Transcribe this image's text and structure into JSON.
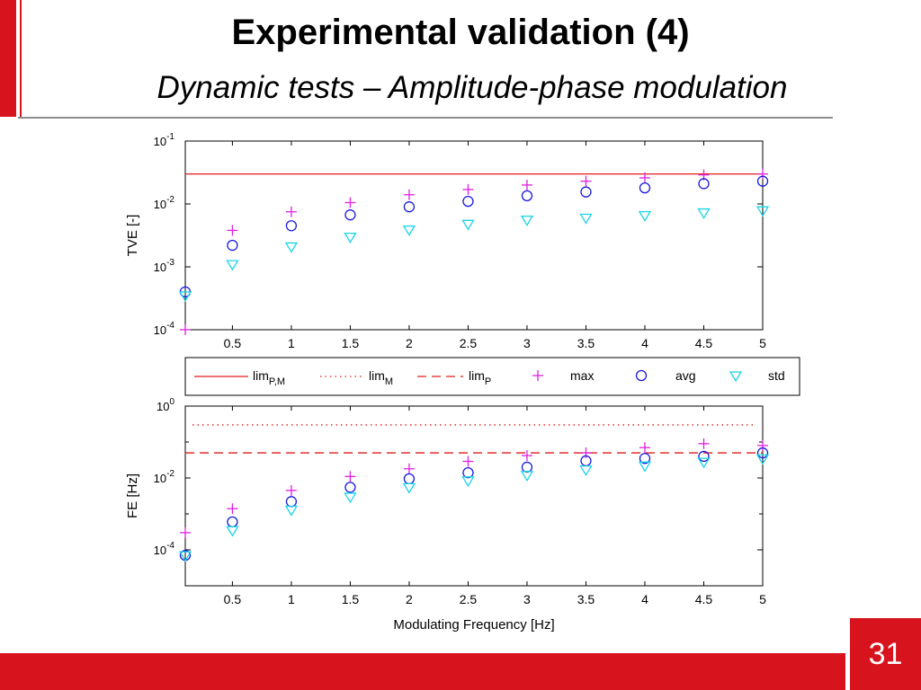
{
  "slide": {
    "title": "Experimental validation (4)",
    "subtitle": "Dynamic tests – Amplitude-phase modulation",
    "page_number": "31",
    "accent_color": "#d7141e"
  },
  "chart_data": [
    {
      "type": "scatter",
      "ylabel": "TVE [-]",
      "xlabel": "",
      "yscale": "log",
      "ylim": [
        0.0001,
        0.1
      ],
      "xlim": [
        0.1,
        5
      ],
      "x_ticks": [
        "0.5",
        "1",
        "1.5",
        "2",
        "2.5",
        "3",
        "3.5",
        "4",
        "4.5",
        "5"
      ],
      "y_ticks": [
        {
          "base": "10",
          "exp": "-1",
          "value": 0.1
        },
        {
          "base": "10",
          "exp": "-2",
          "value": 0.01
        },
        {
          "base": "10",
          "exp": "-3",
          "value": 0.001
        },
        {
          "base": "10",
          "exp": "-4",
          "value": 0.0001
        }
      ],
      "grid": false,
      "x": [
        0.1,
        0.5,
        1,
        1.5,
        2,
        2.5,
        3,
        3.5,
        4,
        4.5,
        5
      ],
      "lines": [
        {
          "name": "lim_P,M",
          "value": 0.03,
          "style": "solid",
          "color": "#e01c1c"
        }
      ],
      "series": [
        {
          "name": "max",
          "marker": "+",
          "color": "#e020e0",
          "values": [
            0.0001,
            0.0038,
            0.0075,
            0.0105,
            0.014,
            0.017,
            0.02,
            0.023,
            0.026,
            0.029,
            0.03
          ]
        },
        {
          "name": "avg",
          "marker": "o",
          "color": "#1a1ae0",
          "values": [
            0.0004,
            0.0022,
            0.0045,
            0.0067,
            0.009,
            0.011,
            0.0135,
            0.0155,
            0.018,
            0.021,
            0.023
          ]
        },
        {
          "name": "std",
          "marker": "v",
          "color": "#19d4e8",
          "values": [
            0.00035,
            0.0011,
            0.0021,
            0.003,
            0.0039,
            0.0048,
            0.0056,
            0.006,
            0.0066,
            0.0073,
            0.0079
          ]
        }
      ]
    },
    {
      "type": "scatter",
      "ylabel": "FE [Hz]",
      "xlabel": "Modulating Frequency [Hz]",
      "yscale": "log",
      "ylim": [
        1e-05,
        1
      ],
      "xlim": [
        0.1,
        5
      ],
      "x_ticks": [
        "0.5",
        "1",
        "1.5",
        "2",
        "2.5",
        "3",
        "3.5",
        "4",
        "4.5",
        "5"
      ],
      "y_ticks": [
        {
          "base": "10",
          "exp": "0",
          "value": 1
        },
        {
          "base": "10",
          "exp": "-2",
          "value": 0.01
        },
        {
          "base": "10",
          "exp": "-4",
          "value": 0.0001
        }
      ],
      "grid": false,
      "x": [
        0.1,
        0.5,
        1,
        1.5,
        2,
        2.5,
        3,
        3.5,
        4,
        4.5,
        5
      ],
      "lines": [
        {
          "name": "lim_M",
          "value": 0.3,
          "style": "dotted",
          "color": "#e01c1c"
        },
        {
          "name": "lim_P",
          "value": 0.05,
          "style": "dashed",
          "color": "#e01c1c"
        }
      ],
      "series": [
        {
          "name": "max",
          "marker": "+",
          "color": "#e020e0",
          "values": [
            0.0003,
            0.0014,
            0.0045,
            0.011,
            0.018,
            0.029,
            0.042,
            0.05,
            0.07,
            0.09,
            0.08
          ]
        },
        {
          "name": "avg",
          "marker": "o",
          "color": "#1a1ae0",
          "values": [
            7e-05,
            0.0006,
            0.0022,
            0.0055,
            0.0095,
            0.014,
            0.02,
            0.03,
            0.035,
            0.04,
            0.05
          ]
        },
        {
          "name": "std",
          "marker": "v",
          "color": "#19d4e8",
          "values": [
            7e-05,
            0.00035,
            0.0013,
            0.003,
            0.0055,
            0.0085,
            0.012,
            0.017,
            0.022,
            0.028,
            0.035
          ]
        }
      ]
    }
  ],
  "legend": [
    {
      "base": "lim",
      "sub": "P,M",
      "style": "solid"
    },
    {
      "base": "lim",
      "sub": "M",
      "style": "dotted"
    },
    {
      "base": "lim",
      "sub": "P",
      "style": "dashed"
    },
    {
      "base": "max",
      "sub": "",
      "style": "plus"
    },
    {
      "base": "avg",
      "sub": "",
      "style": "circle"
    },
    {
      "base": "std",
      "sub": "",
      "style": "triangle"
    }
  ]
}
